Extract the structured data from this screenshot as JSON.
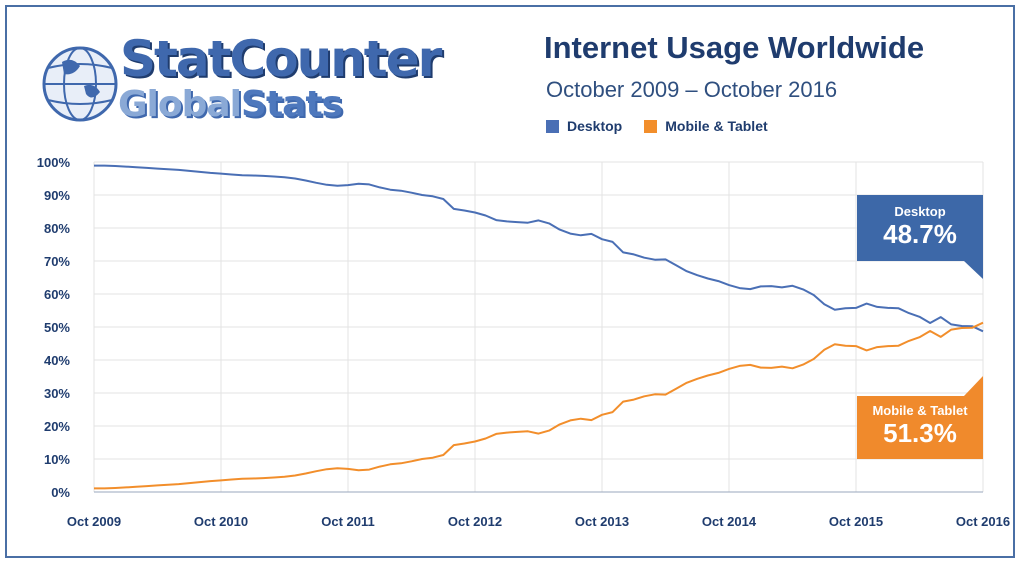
{
  "header": {
    "logo_line1": "StatCounter",
    "logo_line2a": "Global",
    "logo_line2b": "Stats",
    "title": "Internet Usage Worldwide",
    "subtitle": "October 2009 – October 2016"
  },
  "legend": [
    {
      "label": "Desktop",
      "color": "#4a6fb5"
    },
    {
      "label": "Mobile & Tablet",
      "color": "#f28e2b"
    }
  ],
  "callouts": {
    "desktop": {
      "label": "Desktop",
      "value": "48.7%",
      "color": "#3d68a8"
    },
    "mobile": {
      "label": "Mobile & Tablet",
      "value": "51.3%",
      "color": "#f08a2c"
    }
  },
  "chart_data": {
    "type": "line",
    "title": "Internet Usage Worldwide",
    "subtitle": "October 2009 – October 2016",
    "x_tick_labels": [
      "Oct 2009",
      "Oct 2010",
      "Oct 2011",
      "Oct 2012",
      "Oct 2013",
      "Oct 2014",
      "Oct 2015",
      "Oct 2016"
    ],
    "y_tick_labels": [
      "0%",
      "10%",
      "20%",
      "30%",
      "40%",
      "50%",
      "60%",
      "70%",
      "80%",
      "90%",
      "100%"
    ],
    "ylim": [
      0,
      100
    ],
    "grid": true,
    "legend_position": "top",
    "series": [
      {
        "name": "Desktop",
        "color": "#4a6fb5",
        "values": [
          98.9,
          98.9,
          98.8,
          98.6,
          98.4,
          98.2,
          98.0,
          97.8,
          97.6,
          97.3,
          97.0,
          96.7,
          96.5,
          96.2,
          96.0,
          95.9,
          95.8,
          95.6,
          95.4,
          95.0,
          94.4,
          93.7,
          93.1,
          92.8,
          93.0,
          93.4,
          93.2,
          92.3,
          91.6,
          91.3,
          90.7,
          90.0,
          89.6,
          88.8,
          85.8,
          85.3,
          84.7,
          83.8,
          82.4,
          82.0,
          81.8,
          81.6,
          82.3,
          81.4,
          79.5,
          78.3,
          77.8,
          78.2,
          76.6,
          75.8,
          72.6,
          72.0,
          71.0,
          70.4,
          70.5,
          68.7,
          66.9,
          65.7,
          64.7,
          63.9,
          62.7,
          61.8,
          61.5,
          62.3,
          62.4,
          62.0,
          62.5,
          61.4,
          59.7,
          56.9,
          55.2,
          55.7,
          55.8,
          57.1,
          56.1,
          55.8,
          55.7,
          54.2,
          53.1,
          51.2,
          53.0,
          50.8,
          50.3,
          50.2,
          48.7
        ]
      },
      {
        "name": "Mobile & Tablet",
        "color": "#f28e2b",
        "values": [
          1.1,
          1.1,
          1.2,
          1.4,
          1.6,
          1.8,
          2.0,
          2.2,
          2.4,
          2.7,
          3.0,
          3.3,
          3.5,
          3.8,
          4.0,
          4.1,
          4.2,
          4.4,
          4.6,
          5.0,
          5.6,
          6.3,
          6.9,
          7.2,
          7.0,
          6.6,
          6.8,
          7.7,
          8.4,
          8.7,
          9.3,
          10.0,
          10.4,
          11.2,
          14.2,
          14.7,
          15.3,
          16.2,
          17.6,
          18.0,
          18.2,
          18.4,
          17.7,
          18.6,
          20.5,
          21.7,
          22.2,
          21.8,
          23.4,
          24.2,
          27.4,
          28.0,
          29.0,
          29.6,
          29.5,
          31.3,
          33.1,
          34.3,
          35.3,
          36.1,
          37.3,
          38.2,
          38.5,
          37.7,
          37.6,
          38.0,
          37.5,
          38.6,
          40.3,
          43.1,
          44.8,
          44.3,
          44.2,
          42.9,
          43.9,
          44.2,
          44.3,
          45.8,
          46.9,
          48.8,
          47.0,
          49.2,
          49.7,
          49.8,
          51.3
        ]
      }
    ]
  }
}
